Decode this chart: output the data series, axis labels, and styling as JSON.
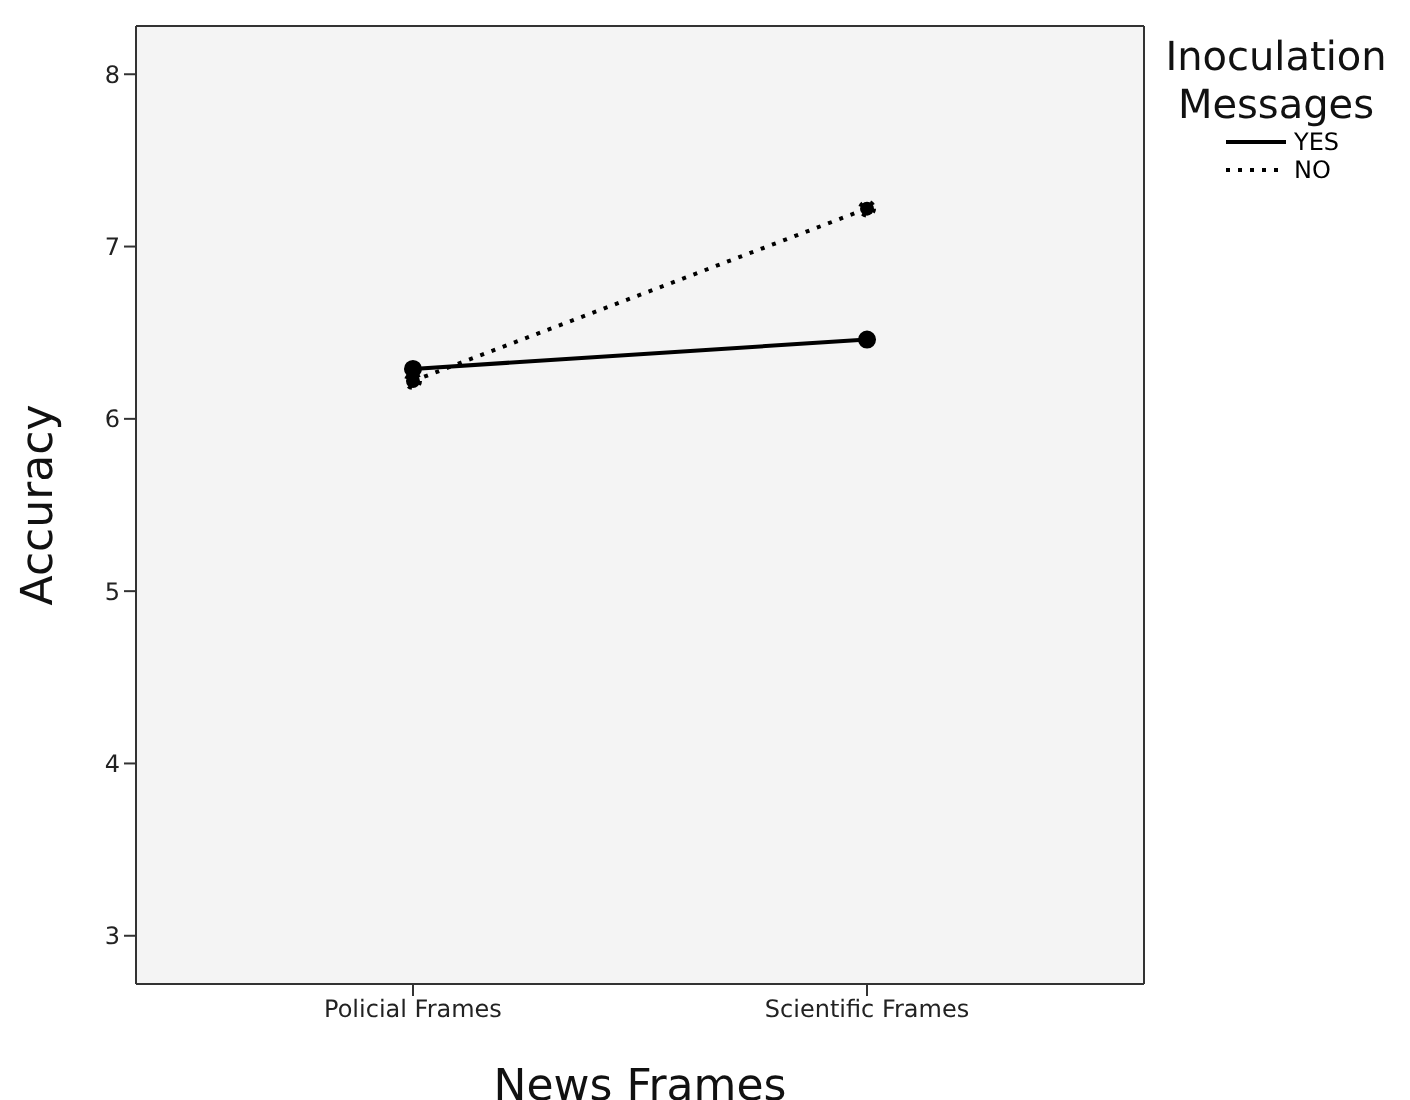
{
  "chart_data": {
    "type": "line",
    "xlabel": "News Frames",
    "ylabel": "Accuracy",
    "legend_title": "Inoculation Messages",
    "categories": [
      "Policial Frames",
      "Scientific Frames"
    ],
    "series": [
      {
        "name": "YES",
        "color": "#000000",
        "line_style": "solid",
        "values": [
          6.29,
          6.46
        ]
      },
      {
        "name": "NO",
        "color": "#000000",
        "line_style": "dotted",
        "values": [
          6.22,
          7.22
        ]
      }
    ],
    "ylim": [
      2.72,
      8.28
    ],
    "yticks": [
      3,
      4,
      5,
      6,
      7,
      8
    ],
    "marker": "circle",
    "legend": "top right",
    "grid": false
  }
}
